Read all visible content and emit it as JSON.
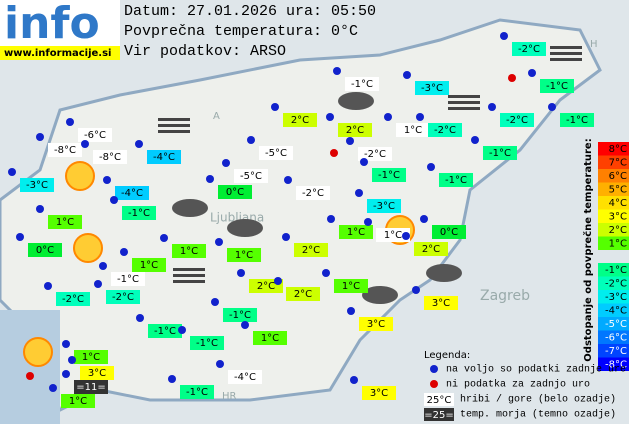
{
  "header": {
    "logo": "info",
    "url": "www.informacije.si",
    "lines": [
      "Datum: 27.01.2026 ura: 05:50",
      "Povprečna temperatura: 0°C",
      "Vir podatkov: ARSO"
    ]
  },
  "places": [
    "Ljubljana",
    "Zagreb",
    "HR",
    "A",
    "H"
  ],
  "stations": [
    "-2°C",
    "-1°C",
    "-3°C",
    "-1°C",
    "2°C",
    "2°C",
    "1°C",
    "-2°C",
    "-2°C",
    "-1°C",
    "-6°C",
    "-8°C",
    "-8°C",
    "-4°C",
    "-5°C",
    "-2°C",
    "-1°C",
    "-3°C",
    "-5°C",
    "-1°C",
    "-1°C",
    "-4°C",
    "0°C",
    "-2°C",
    "-3°C",
    "-1°C",
    "1°C",
    "1°C",
    "1°C",
    "0°C",
    "2°C",
    "0°C",
    "1°C",
    "1°C",
    "2°C",
    "1°C",
    "-1°C",
    "2°C",
    "2°C",
    "1°C",
    "-2°C",
    "-2°C",
    "3°C",
    "-1°C",
    "3°C",
    "-1°C",
    "1°C",
    "-1°C",
    "1°C",
    "3°C",
    "=11=",
    "-4°C",
    "-1°C",
    "1°C",
    "3°C"
  ],
  "scale": {
    "title": "Odstopanje od povprečne temperature:",
    "labels": [
      "8°C",
      "7°C",
      "6°C",
      "5°C",
      "4°C",
      "3°C",
      "2°C",
      "1°C",
      "-1°C",
      "-2°C",
      "-3°C",
      "-4°C",
      "-5°C",
      "-6°C",
      "-7°C",
      "-8°C"
    ]
  },
  "legend": {
    "title": "Legenda:",
    "items": [
      {
        "text": "na voljo so podatki zadnje ure"
      },
      {
        "text": "ni podatka za zadnjo uro"
      },
      {
        "sample": "25°C",
        "text": "hribi / gore (belo ozadje)"
      },
      {
        "sample": "=25=",
        "text": "temp. morja (temno ozadje)"
      }
    ]
  }
}
